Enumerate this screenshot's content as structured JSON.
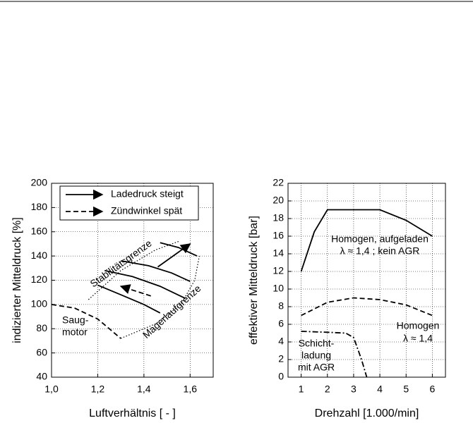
{
  "chart_data": [
    {
      "type": "line",
      "xlabel": "Luftverhältnis [ - ]",
      "ylabel": "indizierter Mitteldruck [%]",
      "xlim": [
        1.0,
        1.7
      ],
      "xticks": [
        {
          "value": 1.0,
          "label": "1,0"
        },
        {
          "value": 1.2,
          "label": "1,2"
        },
        {
          "value": 1.4,
          "label": "1,4"
        },
        {
          "value": 1.6,
          "label": "1,6"
        }
      ],
      "ylim": [
        40,
        200
      ],
      "yticks": [
        40,
        60,
        80,
        100,
        120,
        140,
        160,
        180,
        200
      ],
      "grid": true,
      "color": "#000000",
      "legend": [
        {
          "label": "Ladedruck steigt",
          "style": "solid"
        },
        {
          "label": "Zündwinkel spät",
          "style": "dashed"
        }
      ],
      "series": [
        {
          "style": "solid",
          "x": [
            1.2,
            1.3,
            1.4,
            1.47
          ],
          "values": [
            116,
            108,
            100,
            93
          ]
        },
        {
          "style": "solid",
          "x": [
            1.23,
            1.35,
            1.47,
            1.58
          ],
          "values": [
            128,
            123,
            115,
            105
          ]
        },
        {
          "style": "solid",
          "x": [
            1.3,
            1.42,
            1.52,
            1.6
          ],
          "values": [
            136,
            132,
            126,
            119
          ]
        },
        {
          "style": "solid",
          "x": [
            1.47,
            1.55,
            1.63
          ],
          "values": [
            151,
            147,
            140
          ]
        },
        {
          "style": "dashed",
          "x": [
            1.0,
            1.1,
            1.2,
            1.3
          ],
          "values": [
            100,
            97,
            88,
            72
          ]
        },
        {
          "style": "dotted",
          "x": [
            1.16,
            1.3,
            1.45,
            1.55
          ],
          "values": [
            104,
            128,
            145,
            152
          ]
        },
        {
          "style": "dotted",
          "x": [
            1.3,
            1.45,
            1.56,
            1.62,
            1.64
          ],
          "values": [
            72,
            84,
            100,
            120,
            140
          ]
        },
        {
          "style": "solid",
          "arrow": true,
          "x": [
            1.46,
            1.6
          ],
          "values": [
            131,
            150
          ]
        },
        {
          "style": "dashed",
          "arrow": true,
          "x": [
            1.43,
            1.3
          ],
          "values": [
            107,
            115
          ]
        }
      ],
      "annotations": [
        "Saug-",
        "motor",
        "Stabilitätsgrenze",
        "Magerlaufgrenze"
      ]
    },
    {
      "type": "line",
      "xlabel": "Drehzahl [1.000/min]",
      "ylabel": "effektiver Mitteldruck [bar]",
      "xlim": [
        0.5,
        6.5
      ],
      "xticks": [
        1,
        2,
        3,
        4,
        5,
        6
      ],
      "ylim": [
        0,
        22
      ],
      "yticks": [
        0,
        2,
        4,
        6,
        8,
        10,
        12,
        14,
        16,
        18,
        20,
        22
      ],
      "grid": true,
      "color": "#000000",
      "series": [
        {
          "style": "solid",
          "x": [
            1,
            1.5,
            2,
            4,
            5,
            6
          ],
          "values": [
            12,
            16.5,
            19,
            19,
            17.8,
            16
          ]
        },
        {
          "style": "dashed",
          "x": [
            1,
            2,
            3,
            4,
            5,
            6
          ],
          "values": [
            7,
            8.5,
            9,
            8.8,
            8.2,
            7
          ]
        },
        {
          "style": "dashdot",
          "x": [
            1,
            2,
            2.7,
            3,
            3.3,
            3.5
          ],
          "values": [
            5.2,
            5.1,
            5,
            4.5,
            2,
            0
          ]
        }
      ],
      "annotations": [
        "Homogen, aufgeladen",
        "λ ≈ 1,4  ; kein AGR",
        "Homogen",
        "λ ≈ 1,4",
        "Schicht-",
        "ladung",
        "mit AGR"
      ]
    }
  ]
}
